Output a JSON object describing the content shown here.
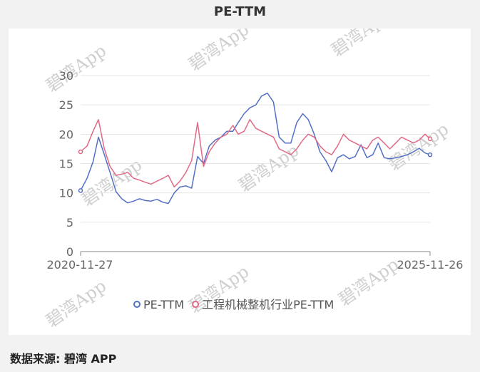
{
  "title": "PE-TTM",
  "source": "数据来源: 碧湾 APP",
  "watermark": "碧湾App",
  "chart_data": {
    "type": "line",
    "title": "PE-TTM",
    "x_tick_labels": [
      "2020-11-27",
      "2025-11-26"
    ],
    "x_range": [
      "2020-11-27",
      "2025-11-26"
    ],
    "ylim": [
      0,
      30
    ],
    "yticks": [
      0,
      5,
      10,
      15,
      20,
      25,
      30
    ],
    "grid": true,
    "legend_position": "bottom",
    "x": [
      "2020-11-27",
      "2020-12-31",
      "2021-01-31",
      "2021-02-28",
      "2021-03-31",
      "2021-04-30",
      "2021-05-31",
      "2021-06-30",
      "2021-07-31",
      "2021-08-31",
      "2021-09-30",
      "2021-10-31",
      "2021-11-30",
      "2021-12-31",
      "2022-01-31",
      "2022-02-28",
      "2022-03-31",
      "2022-04-30",
      "2022-05-31",
      "2022-06-30",
      "2022-07-31",
      "2022-08-31",
      "2022-09-30",
      "2022-10-31",
      "2022-11-30",
      "2022-12-31",
      "2023-01-31",
      "2023-02-28",
      "2023-03-31",
      "2023-04-30",
      "2023-05-31",
      "2023-06-30",
      "2023-07-31",
      "2023-08-31",
      "2023-09-30",
      "2023-10-31",
      "2023-11-30",
      "2023-12-31",
      "2024-01-31",
      "2024-02-29",
      "2024-03-31",
      "2024-04-30",
      "2024-05-31",
      "2024-06-30",
      "2024-07-31",
      "2024-08-31",
      "2024-09-30",
      "2024-10-31",
      "2024-11-30",
      "2024-12-31",
      "2025-01-31",
      "2025-02-28",
      "2025-03-31",
      "2025-04-30",
      "2025-05-31",
      "2025-06-30",
      "2025-07-31",
      "2025-08-31",
      "2025-09-30",
      "2025-10-31",
      "2025-11-26"
    ],
    "series": [
      {
        "name": "PE-TTM",
        "color": "#5470c6",
        "values": [
          10.4,
          12.5,
          15.3,
          19.5,
          16.5,
          13.5,
          10.2,
          9.0,
          8.3,
          8.6,
          9.0,
          8.7,
          8.6,
          8.9,
          8.4,
          8.2,
          10.0,
          11.0,
          11.2,
          10.8,
          16.2,
          15.0,
          18.0,
          19.0,
          19.5,
          20.5,
          20.5,
          22.0,
          23.5,
          24.5,
          25.0,
          26.5,
          27.0,
          25.5,
          19.5,
          18.5,
          18.5,
          22.0,
          23.5,
          22.5,
          20.0,
          17.0,
          15.5,
          13.6,
          16.0,
          16.5,
          15.8,
          16.2,
          18.2,
          16.0,
          16.5,
          18.5,
          16.0,
          15.8,
          16.0,
          16.2,
          16.5,
          17.0,
          17.6,
          16.8,
          16.5
        ]
      },
      {
        "name": "工程机械整机行业PE-TTM",
        "color": "#e06a85",
        "values": [
          17.0,
          18.0,
          20.5,
          22.5,
          17.5,
          14.5,
          13.0,
          13.2,
          13.5,
          12.5,
          12.2,
          11.8,
          11.5,
          12.0,
          12.5,
          13.0,
          11.0,
          12.0,
          13.5,
          15.5,
          22.0,
          14.5,
          17.0,
          18.5,
          19.5,
          20.0,
          21.5,
          20.0,
          20.5,
          22.5,
          21.0,
          20.5,
          20.0,
          19.5,
          17.5,
          17.0,
          16.5,
          17.5,
          19.0,
          20.0,
          19.5,
          18.0,
          17.0,
          16.5,
          18.0,
          20.0,
          19.0,
          18.5,
          18.0,
          17.5,
          19.0,
          19.5,
          18.5,
          17.5,
          18.5,
          19.5,
          19.0,
          18.5,
          19.0,
          20.0,
          19.2
        ]
      }
    ]
  }
}
